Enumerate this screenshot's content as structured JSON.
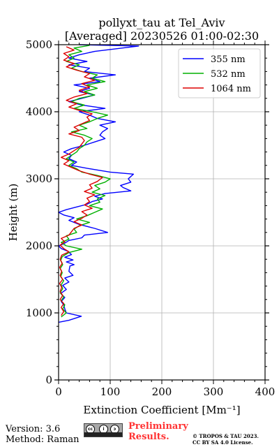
{
  "chart_data": {
    "type": "line",
    "title_line1": "pollyxt_tau at Tel_Aviv",
    "title_line2": "[Averaged] 20230526 01:00-02:30",
    "xlabel": "Extinction Coefficient [Mm⁻¹]",
    "ylabel": "Height (m)",
    "xlim": [
      0,
      400
    ],
    "ylim": [
      0,
      5000
    ],
    "xticks": [
      "0",
      "100",
      "200",
      "300",
      "400"
    ],
    "yticks": [
      "0",
      "1000",
      "2000",
      "3000",
      "4000",
      "5000"
    ],
    "grid": true,
    "legend_position": "top-right",
    "series": [
      {
        "name": "355 nm",
        "color": "#0000ff",
        "points": [
          [
            0,
            860
          ],
          [
            20,
            890
          ],
          [
            44,
            950
          ],
          [
            15,
            1000
          ],
          [
            12,
            1060
          ],
          [
            10,
            1120
          ],
          [
            5,
            1170
          ],
          [
            12,
            1230
          ],
          [
            4,
            1290
          ],
          [
            15,
            1350
          ],
          [
            8,
            1410
          ],
          [
            20,
            1460
          ],
          [
            12,
            1520
          ],
          [
            28,
            1560
          ],
          [
            20,
            1620
          ],
          [
            22,
            1700
          ],
          [
            30,
            1720
          ],
          [
            15,
            1760
          ],
          [
            28,
            1790
          ],
          [
            12,
            1830
          ],
          [
            25,
            1870
          ],
          [
            18,
            1920
          ],
          [
            5,
            1960
          ],
          [
            0,
            2000
          ],
          [
            10,
            2030
          ],
          [
            20,
            2080
          ],
          [
            45,
            2120
          ],
          [
            50,
            2160
          ],
          [
            95,
            2200
          ],
          [
            70,
            2260
          ],
          [
            40,
            2320
          ],
          [
            20,
            2380
          ],
          [
            30,
            2420
          ],
          [
            10,
            2460
          ],
          [
            0,
            2500
          ],
          [
            15,
            2540
          ],
          [
            35,
            2580
          ],
          [
            55,
            2620
          ],
          [
            65,
            2660
          ],
          [
            85,
            2700
          ],
          [
            70,
            2740
          ],
          [
            90,
            2780
          ],
          [
            140,
            2820
          ],
          [
            125,
            2870
          ],
          [
            120,
            2900
          ],
          [
            140,
            2950
          ],
          [
            135,
            3000
          ],
          [
            145,
            3070
          ],
          [
            100,
            3100
          ],
          [
            60,
            3150
          ],
          [
            25,
            3200
          ],
          [
            35,
            3250
          ],
          [
            20,
            3300
          ],
          [
            25,
            3350
          ],
          [
            10,
            3400
          ],
          [
            25,
            3450
          ],
          [
            50,
            3500
          ],
          [
            70,
            3550
          ],
          [
            90,
            3600
          ],
          [
            80,
            3650
          ],
          [
            85,
            3700
          ],
          [
            95,
            3750
          ],
          [
            80,
            3800
          ],
          [
            110,
            3850
          ],
          [
            75,
            3900
          ],
          [
            60,
            3950
          ],
          [
            40,
            4000
          ],
          [
            90,
            4050
          ],
          [
            45,
            4100
          ],
          [
            20,
            4150
          ],
          [
            45,
            4200
          ],
          [
            70,
            4250
          ],
          [
            40,
            4300
          ],
          [
            60,
            4350
          ],
          [
            30,
            4400
          ],
          [
            80,
            4450
          ],
          [
            60,
            4500
          ],
          [
            110,
            4550
          ],
          [
            50,
            4600
          ],
          [
            60,
            4650
          ],
          [
            20,
            4700
          ],
          [
            55,
            4750
          ],
          [
            20,
            4800
          ],
          [
            40,
            4850
          ],
          [
            70,
            4900
          ],
          [
            155,
            4980
          ],
          [
            40,
            5000
          ]
        ]
      },
      {
        "name": "532 nm",
        "color": "#00b000",
        "points": [
          [
            5,
            940
          ],
          [
            15,
            1000
          ],
          [
            8,
            1060
          ],
          [
            12,
            1120
          ],
          [
            5,
            1180
          ],
          [
            10,
            1240
          ],
          [
            3,
            1300
          ],
          [
            8,
            1360
          ],
          [
            5,
            1420
          ],
          [
            10,
            1480
          ],
          [
            4,
            1540
          ],
          [
            7,
            1600
          ],
          [
            3,
            1660
          ],
          [
            8,
            1720
          ],
          [
            4,
            1780
          ],
          [
            7,
            1840
          ],
          [
            20,
            1900
          ],
          [
            45,
            1950
          ],
          [
            15,
            2000
          ],
          [
            5,
            2050
          ],
          [
            20,
            2100
          ],
          [
            15,
            2150
          ],
          [
            35,
            2200
          ],
          [
            30,
            2250
          ],
          [
            40,
            2300
          ],
          [
            60,
            2350
          ],
          [
            35,
            2400
          ],
          [
            55,
            2450
          ],
          [
            70,
            2500
          ],
          [
            85,
            2550
          ],
          [
            60,
            2600
          ],
          [
            80,
            2650
          ],
          [
            75,
            2700
          ],
          [
            90,
            2750
          ],
          [
            65,
            2800
          ],
          [
            80,
            2850
          ],
          [
            70,
            2900
          ],
          [
            90,
            2950
          ],
          [
            100,
            3000
          ],
          [
            75,
            3050
          ],
          [
            45,
            3100
          ],
          [
            35,
            3150
          ],
          [
            20,
            3200
          ],
          [
            30,
            3250
          ],
          [
            15,
            3300
          ],
          [
            25,
            3350
          ],
          [
            35,
            3400
          ],
          [
            40,
            3450
          ],
          [
            50,
            3500
          ],
          [
            55,
            3550
          ],
          [
            65,
            3600
          ],
          [
            50,
            3650
          ],
          [
            25,
            3700
          ],
          [
            55,
            3750
          ],
          [
            40,
            3800
          ],
          [
            60,
            3850
          ],
          [
            75,
            3900
          ],
          [
            95,
            3950
          ],
          [
            65,
            4000
          ],
          [
            30,
            4050
          ],
          [
            50,
            4100
          ],
          [
            25,
            4150
          ],
          [
            40,
            4200
          ],
          [
            70,
            4250
          ],
          [
            50,
            4300
          ],
          [
            75,
            4350
          ],
          [
            55,
            4400
          ],
          [
            90,
            4450
          ],
          [
            65,
            4500
          ],
          [
            75,
            4550
          ],
          [
            45,
            4600
          ],
          [
            25,
            4650
          ],
          [
            40,
            4700
          ],
          [
            15,
            4750
          ],
          [
            30,
            4800
          ],
          [
            20,
            4850
          ],
          [
            45,
            4900
          ],
          [
            30,
            4950
          ],
          [
            60,
            4990
          ]
        ]
      },
      {
        "name": "1064 nm",
        "color": "#dd0000",
        "points": [
          [
            5,
            960
          ],
          [
            10,
            1020
          ],
          [
            5,
            1080
          ],
          [
            10,
            1140
          ],
          [
            3,
            1200
          ],
          [
            8,
            1260
          ],
          [
            3,
            1320
          ],
          [
            6,
            1380
          ],
          [
            2,
            1440
          ],
          [
            8,
            1500
          ],
          [
            3,
            1560
          ],
          [
            6,
            1620
          ],
          [
            2,
            1680
          ],
          [
            7,
            1740
          ],
          [
            3,
            1800
          ],
          [
            6,
            1860
          ],
          [
            20,
            1910
          ],
          [
            10,
            1960
          ],
          [
            3,
            2010
          ],
          [
            12,
            2060
          ],
          [
            5,
            2110
          ],
          [
            20,
            2160
          ],
          [
            25,
            2210
          ],
          [
            30,
            2260
          ],
          [
            45,
            2310
          ],
          [
            30,
            2360
          ],
          [
            45,
            2410
          ],
          [
            55,
            2460
          ],
          [
            45,
            2510
          ],
          [
            65,
            2560
          ],
          [
            50,
            2610
          ],
          [
            60,
            2660
          ],
          [
            55,
            2710
          ],
          [
            70,
            2760
          ],
          [
            50,
            2810
          ],
          [
            65,
            2860
          ],
          [
            60,
            2910
          ],
          [
            75,
            2960
          ],
          [
            85,
            3020
          ],
          [
            60,
            3070
          ],
          [
            40,
            3120
          ],
          [
            25,
            3170
          ],
          [
            10,
            3220
          ],
          [
            20,
            3270
          ],
          [
            5,
            3320
          ],
          [
            20,
            3370
          ],
          [
            30,
            3420
          ],
          [
            40,
            3470
          ],
          [
            45,
            3520
          ],
          [
            50,
            3570
          ],
          [
            45,
            3620
          ],
          [
            20,
            3670
          ],
          [
            40,
            3720
          ],
          [
            30,
            3770
          ],
          [
            45,
            3820
          ],
          [
            60,
            3870
          ],
          [
            55,
            3920
          ],
          [
            65,
            3970
          ],
          [
            40,
            4020
          ],
          [
            20,
            4070
          ],
          [
            35,
            4120
          ],
          [
            15,
            4170
          ],
          [
            30,
            4220
          ],
          [
            55,
            4270
          ],
          [
            40,
            4320
          ],
          [
            60,
            4370
          ],
          [
            45,
            4420
          ],
          [
            70,
            4470
          ],
          [
            50,
            4520
          ],
          [
            60,
            4570
          ],
          [
            35,
            4620
          ],
          [
            15,
            4670
          ],
          [
            30,
            4720
          ],
          [
            10,
            4770
          ],
          [
            20,
            4820
          ],
          [
            10,
            4870
          ],
          [
            30,
            4920
          ],
          [
            15,
            4970
          ]
        ]
      }
    ]
  },
  "footer": {
    "version": "Version: 3.6",
    "method": "Method: Raman",
    "preliminary_line1": "Preliminary",
    "preliminary_line2": "Results.",
    "copyright_line1": "© TROPOS & TAU 2023.",
    "copyright_line2": "CC BY SA 4.0 License.",
    "badge_text": "BY SA"
  }
}
